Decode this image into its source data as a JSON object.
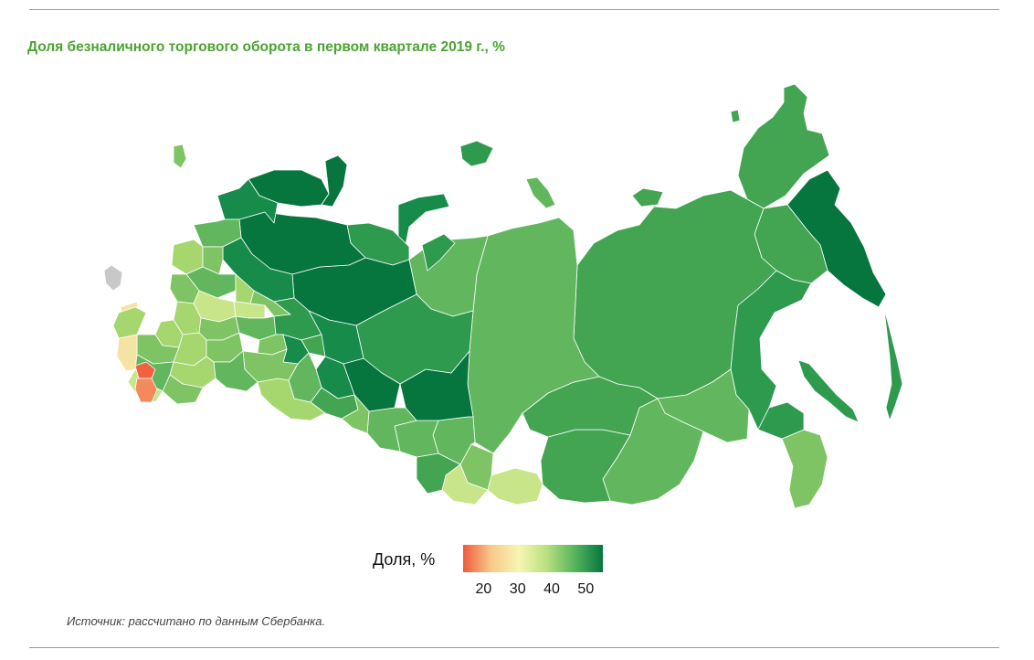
{
  "title": "Доля безналичного торгового оборота в первом квартале 2019 г., %",
  "legend": {
    "title": "Доля, %",
    "ticks": [
      "20",
      "30",
      "40",
      "50"
    ],
    "range": [
      14,
      55
    ],
    "colors": [
      "#ef5a3c",
      "#f7c98a",
      "#f7f6b2",
      "#b8e07e",
      "#55b45c",
      "#067640"
    ]
  },
  "source": "Источник: рассчитано по данным Сбербанка.",
  "map": {
    "country": "Россия",
    "no_data_color": "#c8c8c8",
    "classes": [
      {
        "id": "c20",
        "value": 20,
        "color": "#f0623f"
      },
      {
        "id": "c24",
        "value": 24,
        "color": "#f48a5b"
      },
      {
        "id": "c30",
        "value": 30,
        "color": "#f5e3a3"
      },
      {
        "id": "c36",
        "value": 36,
        "color": "#c9e589"
      },
      {
        "id": "c40",
        "value": 40,
        "color": "#a6d66e"
      },
      {
        "id": "c43",
        "value": 43,
        "color": "#7fc464"
      },
      {
        "id": "c45",
        "value": 45,
        "color": "#62b75e"
      },
      {
        "id": "c48",
        "value": 48,
        "color": "#43a552"
      },
      {
        "id": "c50",
        "value": 50,
        "color": "#2e9a4e"
      },
      {
        "id": "c52",
        "value": 52,
        "color": "#168b4a"
      },
      {
        "id": "c55",
        "value": 55,
        "color": "#07763e"
      }
    ]
  }
}
